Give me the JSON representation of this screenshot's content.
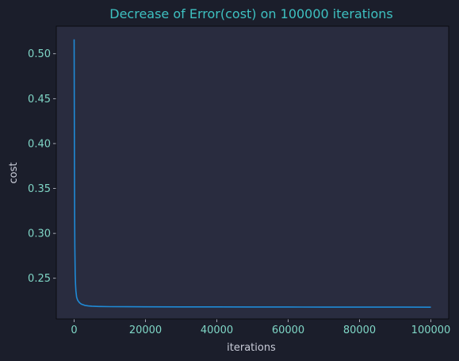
{
  "chart_data": {
    "type": "line",
    "title": "Decrease of Error(cost) on 100000 iterations",
    "xlabel": "iterations",
    "ylabel": "cost",
    "xlim": [
      -5000,
      105000
    ],
    "ylim": [
      0.2047,
      0.5307
    ],
    "xticks": [
      {
        "value": 0,
        "label": "0"
      },
      {
        "value": 20000,
        "label": "20000"
      },
      {
        "value": 40000,
        "label": "40000"
      },
      {
        "value": 60000,
        "label": "60000"
      },
      {
        "value": 80000,
        "label": "80000"
      },
      {
        "value": 100000,
        "label": "100000"
      }
    ],
    "yticks": [
      {
        "value": 0.25,
        "label": "0.25"
      },
      {
        "value": 0.3,
        "label": "0.30"
      },
      {
        "value": 0.35,
        "label": "0.35"
      },
      {
        "value": 0.4,
        "label": "0.40"
      },
      {
        "value": 0.45,
        "label": "0.45"
      },
      {
        "value": 0.5,
        "label": "0.50"
      }
    ],
    "grid": false,
    "series": [
      {
        "x": [
          0,
          50,
          100,
          150,
          200,
          300,
          400,
          500,
          700,
          1000,
          1500,
          2000,
          3000,
          4000,
          5000,
          7000,
          10000,
          15000,
          20000,
          30000,
          40000,
          50000,
          60000,
          70000,
          80000,
          90000,
          100000
        ],
        "y": [
          0.516,
          0.44,
          0.37,
          0.32,
          0.285,
          0.255,
          0.243,
          0.236,
          0.229,
          0.2255,
          0.2228,
          0.2213,
          0.2198,
          0.2192,
          0.2189,
          0.2186,
          0.2184,
          0.2183,
          0.2182,
          0.2181,
          0.2181,
          0.218,
          0.218,
          0.2179,
          0.2179,
          0.2179,
          0.2178
        ]
      }
    ],
    "colors": {
      "figure_bg": "#1b1e2b",
      "axes_bg": "#292c3f",
      "title": "#3ec1c1",
      "label": "#c9ccd8",
      "tick_label": "#7fd6c6",
      "spine": "#0b0c12",
      "line": "#1f8ad6"
    }
  }
}
